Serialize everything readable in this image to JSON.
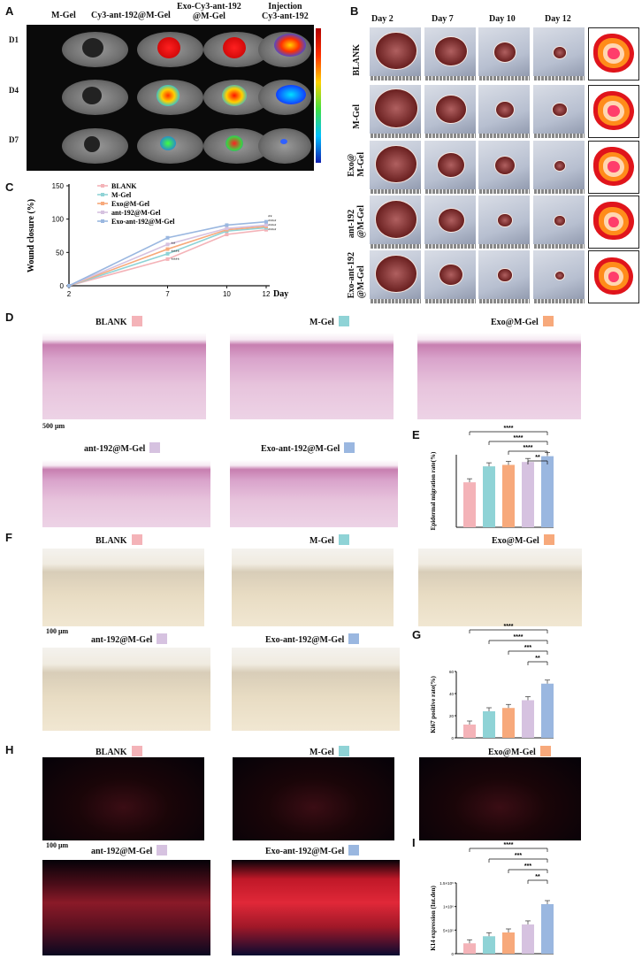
{
  "panels": {
    "A": {
      "letter": "A",
      "columns": [
        "M-Gel",
        "Cy3-ant-192@M-Gel",
        "Exo-Cy3-ant-192\n@M-Gel",
        "Injection\nCy3-ant-192"
      ],
      "rows": [
        "D1",
        "D4",
        "D7"
      ]
    },
    "B": {
      "letter": "B",
      "days": [
        "Day 2",
        "Day 7",
        "Day 10",
        "Day 12"
      ],
      "rows": [
        "BLANK",
        "M-Gel",
        "Exo@\nM-Gel",
        "ant-192\n@M-Gel",
        "Exo-ant-192\n@M-Gel"
      ]
    },
    "C": {
      "letter": "C"
    },
    "D": {
      "letter": "D",
      "scale": "500 μm",
      "labels": [
        "BLANK",
        "M-Gel",
        "Exo@M-Gel",
        "ant-192@M-Gel",
        "Exo-ant-192@M-Gel"
      ]
    },
    "E": {
      "letter": "E"
    },
    "F": {
      "letter": "F",
      "scale": "100 μm",
      "labels": [
        "BLANK",
        "M-Gel",
        "Exo@M-Gel",
        "ant-192@M-Gel",
        "Exo-ant-192@M-Gel"
      ]
    },
    "G": {
      "letter": "G"
    },
    "H": {
      "letter": "H",
      "scale": "100 μm",
      "labels": [
        "BLANK",
        "M-Gel",
        "Exo@M-Gel",
        "ant-192@M-Gel",
        "Exo-ant-192@M-Gel"
      ]
    },
    "I": {
      "letter": "I"
    }
  },
  "colors": {
    "blank": "#f4b3b8",
    "mgel": "#8fd3d6",
    "exo": "#f7a97b",
    "ant": "#d6c2e0",
    "exoant": "#9ab7e0"
  },
  "chart_data": [
    {
      "type": "line",
      "ylabel": "Wound closure (%)",
      "xlabel": "Day",
      "x": [
        2,
        7,
        10,
        12
      ],
      "xticks": [
        "2",
        "7",
        "10",
        "12"
      ],
      "yticks": [
        "0",
        "50",
        "100",
        "150"
      ],
      "ylim": [
        0,
        150
      ],
      "series": [
        {
          "name": "BLANK",
          "values": [
            0,
            40,
            77,
            84
          ]
        },
        {
          "name": "M-Gel",
          "values": [
            0,
            48,
            82,
            87
          ]
        },
        {
          "name": "Exo@M-Gel",
          "values": [
            0,
            55,
            84,
            89
          ]
        },
        {
          "name": "ant-192@M-Gel",
          "values": [
            0,
            62,
            86,
            91
          ]
        },
        {
          "name": "Exo-ant-192@M-Gel",
          "values": [
            0,
            72,
            91,
            96
          ]
        }
      ],
      "sig_7": [
        "**",
        "****",
        "****"
      ],
      "sig_12": [
        "**",
        "****",
        "****",
        "****"
      ]
    },
    {
      "type": "bar",
      "ylabel": "Epidermal migration rate(%)",
      "categories": [
        "BLANK",
        "M-Gel",
        "Exo@M-Gel",
        "ant-192@M-Gel",
        "Exo-ant-192@M-Gel"
      ],
      "values": [
        62,
        84,
        86,
        90,
        98
      ],
      "sig": [
        "****",
        "****",
        "****",
        "**"
      ]
    },
    {
      "type": "bar",
      "ylabel": "Ki67 positive rate(%)",
      "categories": [
        "BLANK",
        "M-Gel",
        "Exo@M-Gel",
        "ant-192@M-Gel",
        "Exo-ant-192@M-Gel"
      ],
      "values": [
        12,
        24,
        27,
        34,
        49
      ],
      "yticks": [
        "0",
        "20",
        "40",
        "60"
      ],
      "ylim": [
        0,
        60
      ],
      "sig": [
        "****",
        "****",
        "***",
        "**"
      ]
    },
    {
      "type": "bar",
      "ylabel": "K14 expression (Int.den)",
      "categories": [
        "BLANK",
        "M-Gel",
        "Exo@M-Gel",
        "ant-192@M-Gel",
        "Exo-ant-192@M-Gel"
      ],
      "values": [
        220000,
        370000,
        450000,
        620000,
        1050000
      ],
      "yticks": [
        "0",
        "5×10⁵",
        "1×10⁶",
        "1.5×10⁶"
      ],
      "ylim": [
        0,
        1500000
      ],
      "sig": [
        "****",
        "***",
        "***",
        "**"
      ]
    }
  ]
}
